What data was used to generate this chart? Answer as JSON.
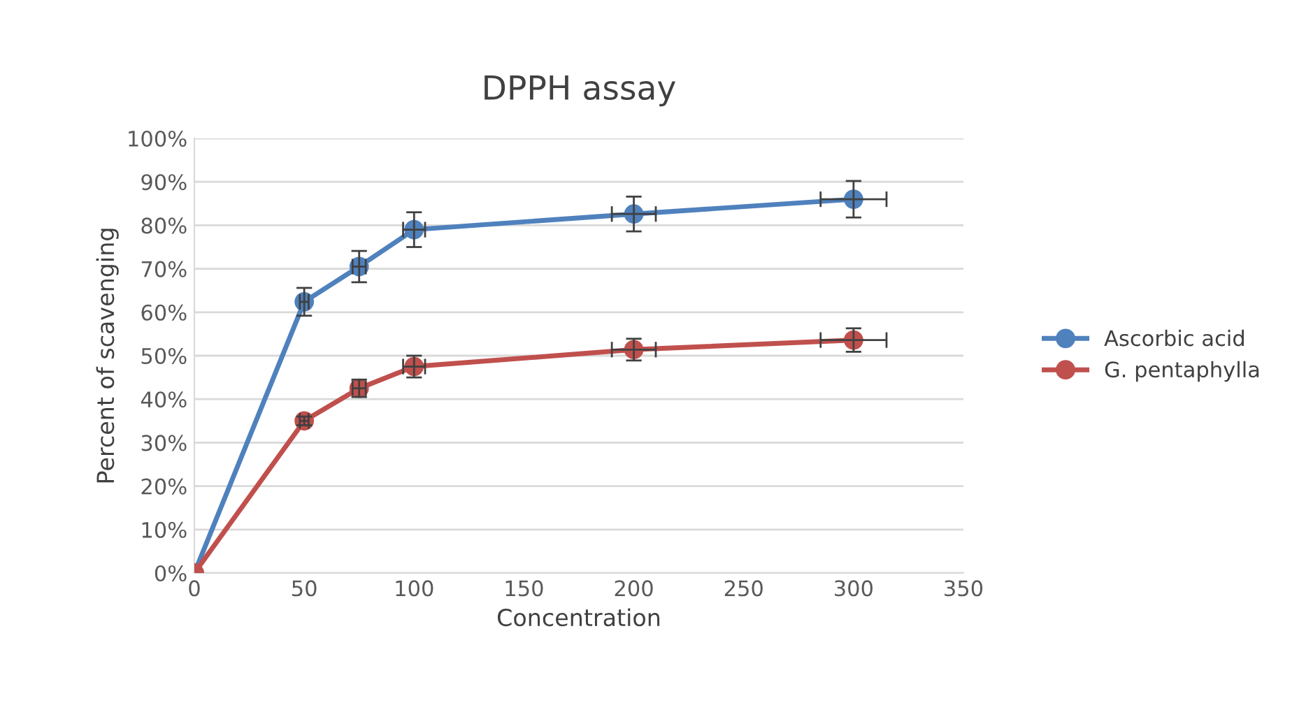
{
  "chart_data": {
    "type": "line",
    "title": "DPPH assay",
    "xlabel": "Concentration",
    "ylabel": "Percent of scavenging",
    "x": [
      0,
      50,
      75,
      100,
      200,
      300
    ],
    "series": [
      {
        "name": "Ascorbic acid",
        "color": "#4f81bd",
        "values": [
          0,
          62.4,
          70.5,
          79,
          82.6,
          86
        ],
        "errors": [
          null,
          3.2,
          3.6,
          4,
          4,
          4.2
        ],
        "xerrors": [
          null,
          2,
          3,
          5,
          10,
          15
        ]
      },
      {
        "name": "G. pentaphylla",
        "color": "#c0504d",
        "values": [
          0,
          35,
          42.5,
          47.5,
          51.4,
          53.6
        ],
        "errors": [
          null,
          1,
          2,
          2.5,
          2.5,
          2.7
        ],
        "xerrors": [
          null,
          2,
          3,
          5,
          10,
          15
        ]
      }
    ],
    "xlim": [
      0,
      350
    ],
    "xticks": [
      0,
      50,
      100,
      150,
      200,
      250,
      300,
      350
    ],
    "ylim": [
      0,
      100
    ],
    "yticks": [
      {
        "value": 0,
        "label": "0%"
      },
      {
        "value": 10,
        "label": "10%"
      },
      {
        "value": 20,
        "label": "20%"
      },
      {
        "value": 30,
        "label": "30%"
      },
      {
        "value": 40,
        "label": "40%"
      },
      {
        "value": 50,
        "label": "50%"
      },
      {
        "value": 60,
        "label": "60%"
      },
      {
        "value": 70,
        "label": "70%"
      },
      {
        "value": 80,
        "label": "80%"
      },
      {
        "value": 90,
        "label": "90%"
      },
      {
        "value": 100,
        "label": "100%"
      }
    ],
    "grid": "y",
    "legend": "right",
    "marker": "circle",
    "line_style": "solid"
  }
}
